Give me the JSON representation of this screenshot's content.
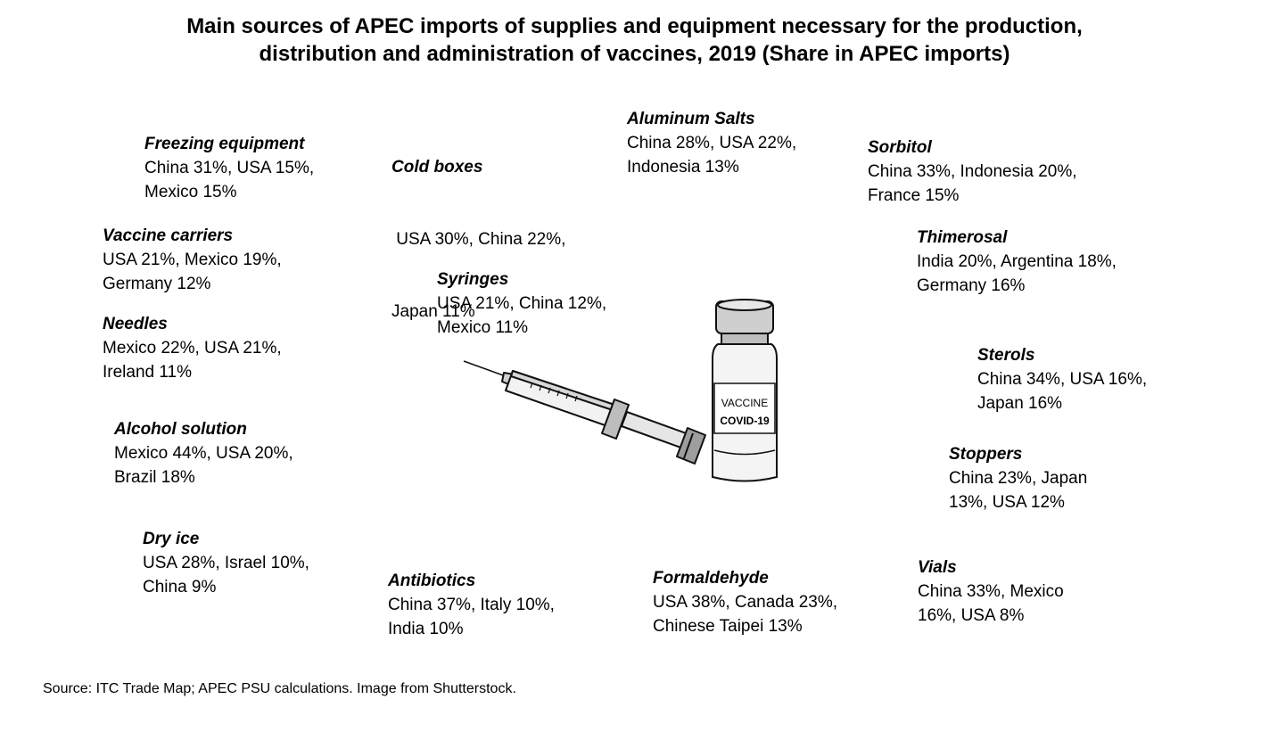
{
  "title": {
    "line1": "Main sources of APEC imports of supplies and equipment necessary for the production,",
    "line2": "distribution and administration of vaccines, 2019 (Share in APEC imports)"
  },
  "items": [
    {
      "name": "Freezing equipment",
      "line1": "China 31%, USA 15%,",
      "line2": "Mexico 15%"
    },
    {
      "name": "Cold boxes",
      "line1": " USA 30%, China 22%,",
      "line2": "Japan 11%"
    },
    {
      "name": "Aluminum Salts",
      "line1": "China 28%, USA 22%,",
      "line2": "Indonesia 13%"
    },
    {
      "name": "Sorbitol",
      "line1": "China 33%, Indonesia 20%,",
      "line2": "France 15%"
    },
    {
      "name": "Vaccine carriers",
      "line1": "USA 21%, Mexico 19%,",
      "line2": "Germany 12%"
    },
    {
      "name": "Thimerosal",
      "line1": "India 20%, Argentina 18%,",
      "line2": "Germany 16%"
    },
    {
      "name": "Syringes",
      "line1": "USA 21%, China 12%,",
      "line2": "Mexico 11%"
    },
    {
      "name": "Needles",
      "line1": "Mexico 22%, USA 21%,",
      "line2": "Ireland 11%"
    },
    {
      "name": "Sterols",
      "line1": "China 34%, USA 16%,",
      "line2": "Japan 16%"
    },
    {
      "name": "Alcohol solution",
      "line1": "Mexico 44%, USA 20%,",
      "line2": "Brazil 18%"
    },
    {
      "name": "Stoppers",
      "line1": "China 23%, Japan",
      "line2": "13%, USA 12%"
    },
    {
      "name": "Dry ice",
      "line1": "USA 28%, Israel 10%,",
      "line2": "China 9%"
    },
    {
      "name": "Vials",
      "line1": "China 33%, Mexico",
      "line2": "16%, USA 8%"
    },
    {
      "name": "Formaldehyde",
      "line1": "USA 38%, Canada 23%,",
      "line2": "Chinese Taipei 13%"
    },
    {
      "name": "Antibiotics",
      "line1": "China 37%, Italy 10%,",
      "line2": "India 10%"
    }
  ],
  "illustration": {
    "vial_label_1": "VACCINE",
    "vial_label_2": "COVID-19"
  },
  "source": "Source: ITC Trade Map; APEC PSU calculations. Image from Shutterstock."
}
